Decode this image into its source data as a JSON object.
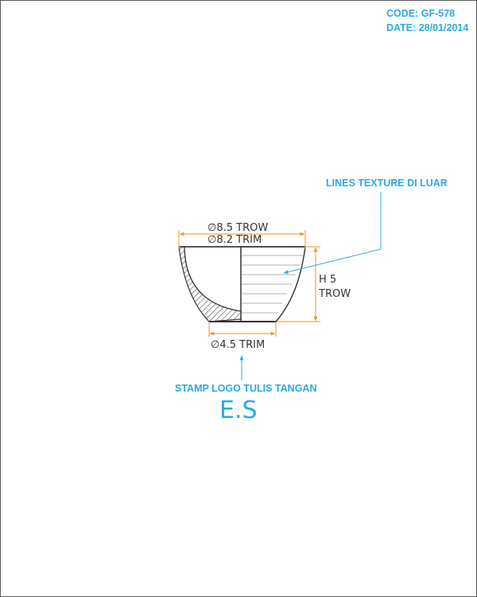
{
  "header": {
    "code": "CODE: GF-578",
    "date": "DATE: 28/01/2014"
  },
  "drawing": {
    "dim_top_outer": "∅8.5 TROW",
    "dim_top_inner": "∅8.2 TRIM",
    "dim_height_line1": "H 5",
    "dim_height_line2": "TROW",
    "dim_bottom": "∅4.5 TRIM",
    "callout_texture": "LINES TEXTURE DI LUAR",
    "callout_stamp": "STAMP LOGO TULIS TANGAN",
    "stamp_text": "E.S"
  },
  "colors": {
    "accent": "#29abe2",
    "dimension": "#f7931e",
    "outline": "#333333",
    "texture": "#9a9a9a"
  }
}
